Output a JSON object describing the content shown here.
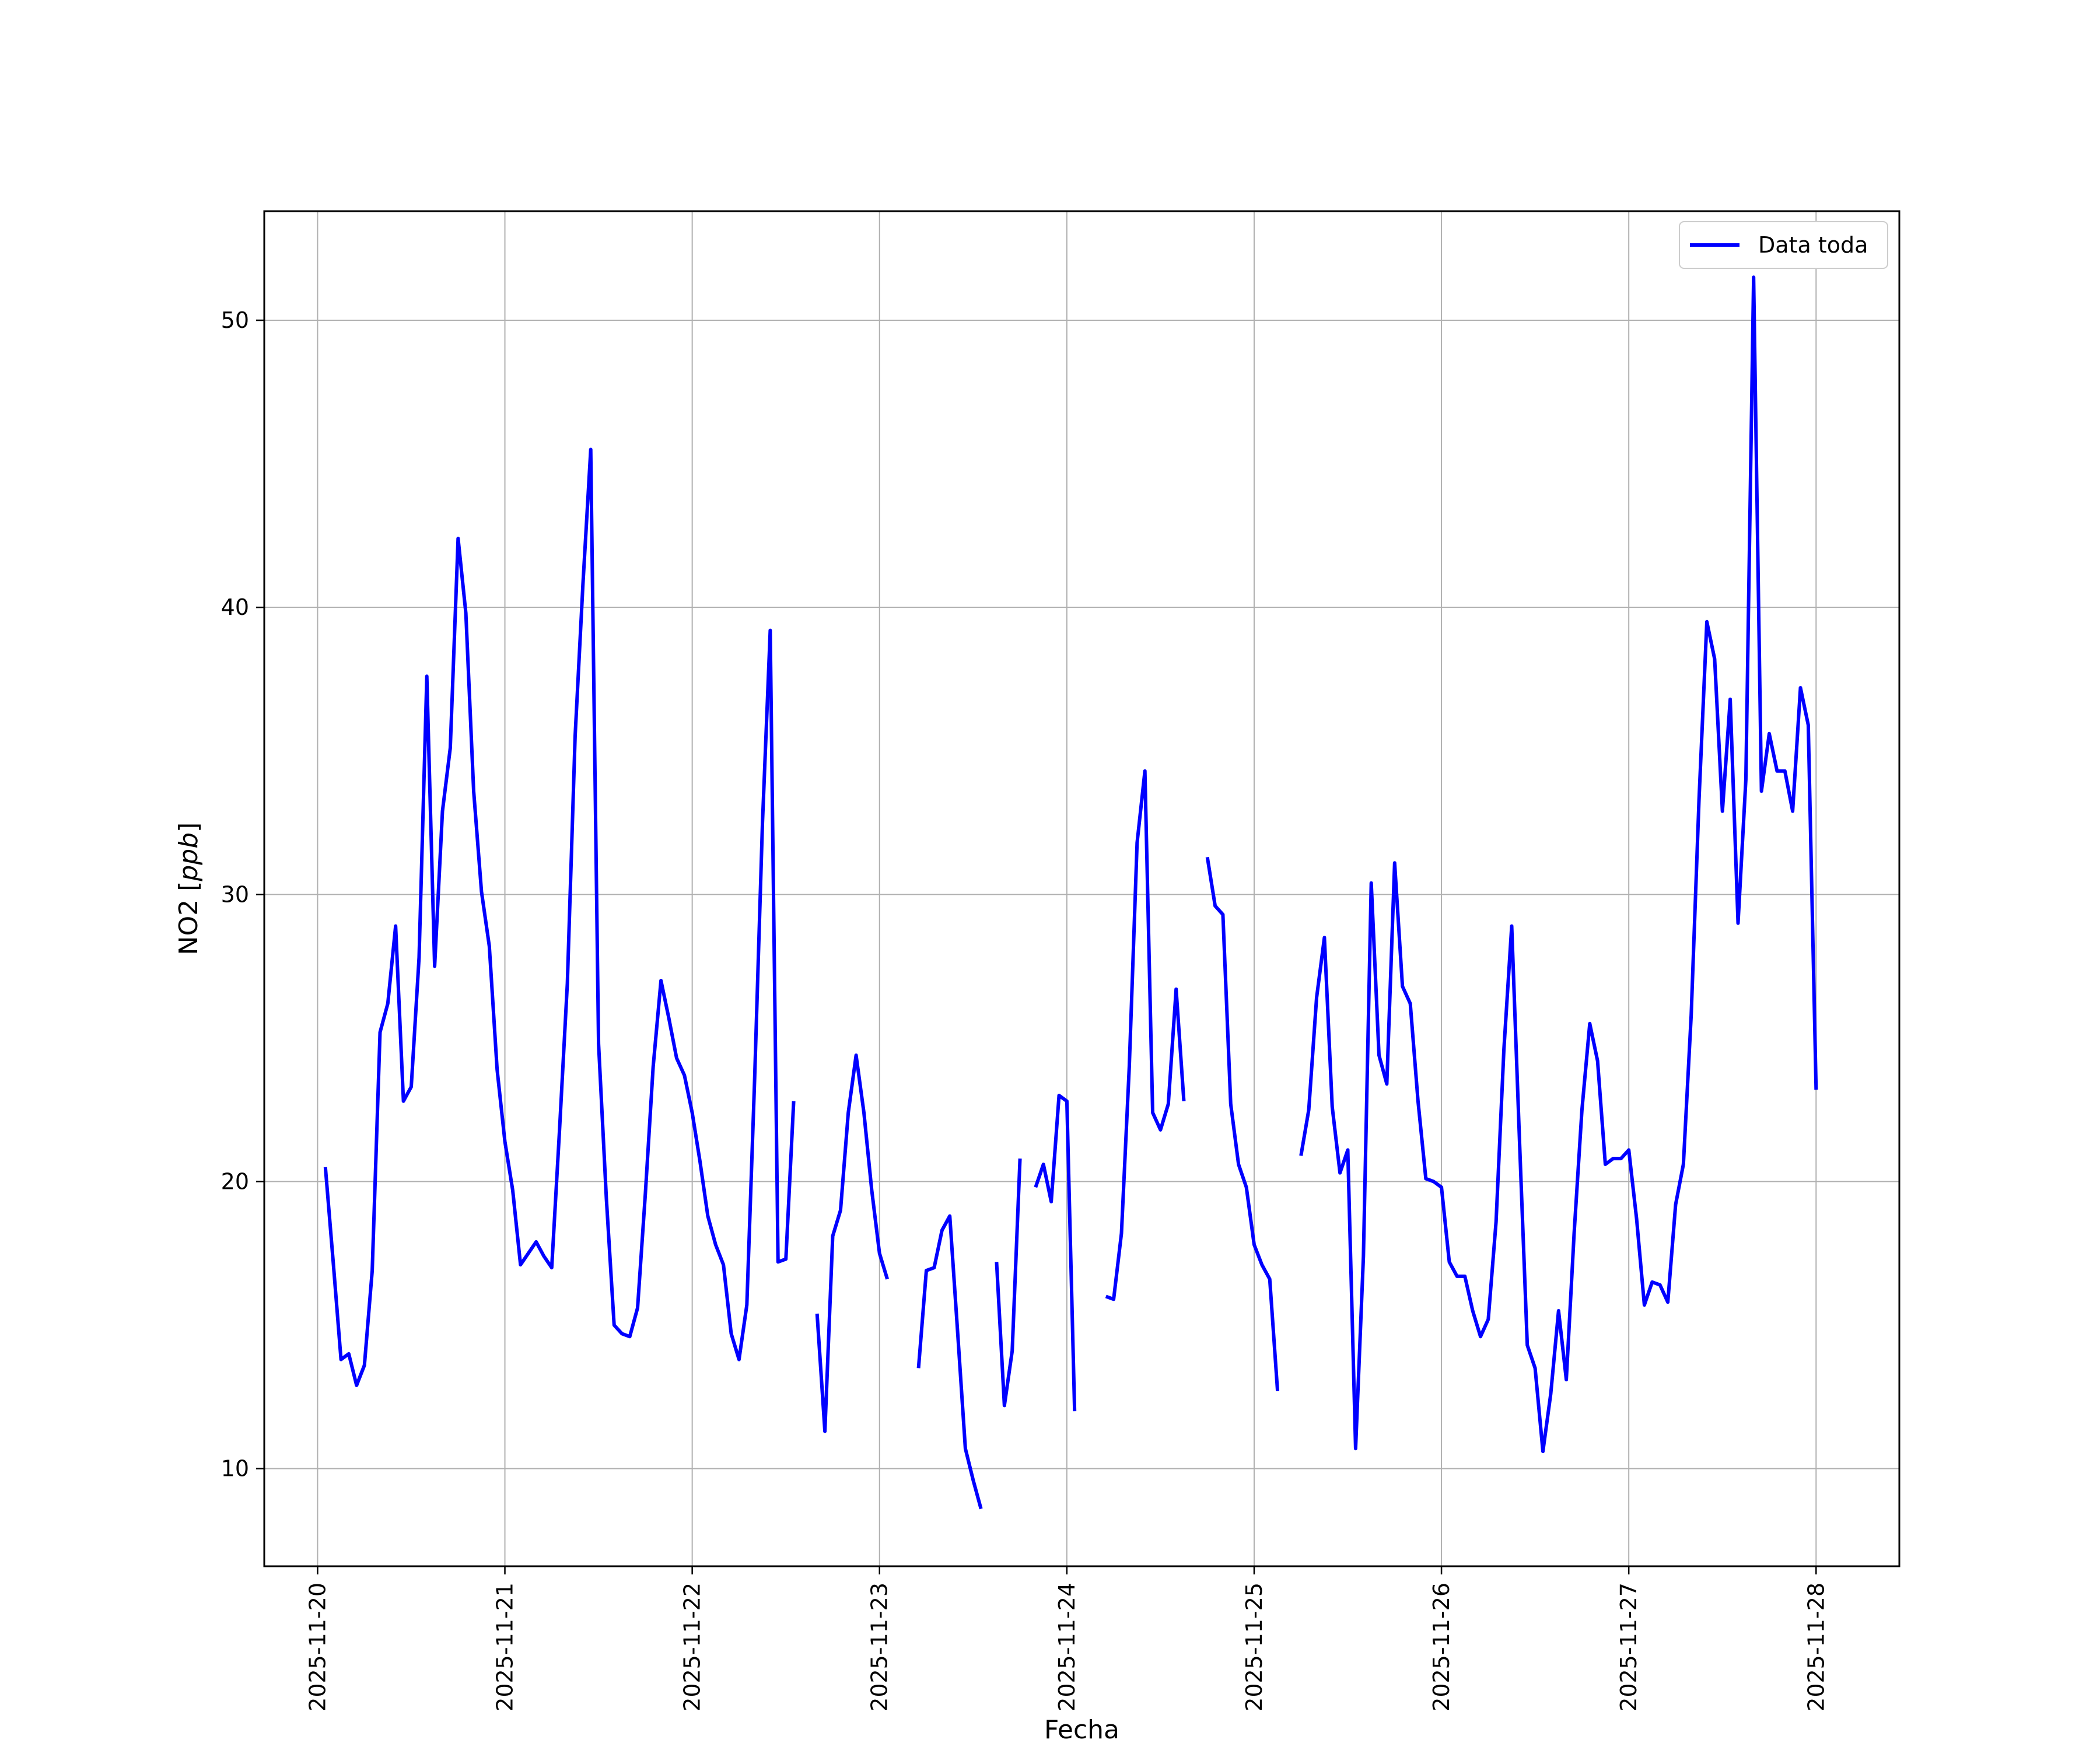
{
  "chart_data": {
    "type": "line",
    "title": "",
    "xlabel": "Fecha",
    "ylabel_prefix": "NO2 [",
    "ylabel_unit": "ppb",
    "ylabel_suffix": "]",
    "x_ticks": [
      "2025-11-20",
      "2025-11-21",
      "2025-11-22",
      "2025-11-23",
      "2025-11-24",
      "2025-11-25",
      "2025-11-26",
      "2025-11-27",
      "2025-11-28"
    ],
    "y_ticks": [
      10,
      20,
      30,
      40,
      50
    ],
    "xlim": [
      "2025-11-19 17:10",
      "2025-11-28 10:40"
    ],
    "ylim": [
      6.6,
      53.8
    ],
    "grid": true,
    "legend": {
      "position": "top-right",
      "entries": [
        "Data toda"
      ]
    },
    "series": [
      {
        "name": "Data toda",
        "color": "#0000ff",
        "segments": [
          [
            [
              "2025-11-20 01:00",
              20.5
            ],
            [
              "2025-11-20 02:00",
              17.2
            ],
            [
              "2025-11-20 03:00",
              13.8
            ],
            [
              "2025-11-20 04:00",
              14.0
            ],
            [
              "2025-11-20 05:00",
              12.9
            ],
            [
              "2025-11-20 06:00",
              13.6
            ],
            [
              "2025-11-20 07:00",
              16.9
            ],
            [
              "2025-11-20 08:00",
              25.2
            ],
            [
              "2025-11-20 09:00",
              26.2
            ],
            [
              "2025-11-20 10:00",
              28.9
            ],
            [
              "2025-11-20 11:00",
              22.8
            ],
            [
              "2025-11-20 12:00",
              23.3
            ],
            [
              "2025-11-20 13:00",
              27.8
            ],
            [
              "2025-11-20 14:00",
              37.6
            ],
            [
              "2025-11-20 15:00",
              27.5
            ],
            [
              "2025-11-20 16:00",
              32.9
            ],
            [
              "2025-11-20 17:00",
              35.1
            ],
            [
              "2025-11-20 18:00",
              42.4
            ],
            [
              "2025-11-20 19:00",
              39.8
            ],
            [
              "2025-11-20 20:00",
              33.6
            ],
            [
              "2025-11-20 21:00",
              30.1
            ],
            [
              "2025-11-20 22:00",
              28.2
            ],
            [
              "2025-11-20 23:00",
              23.9
            ],
            [
              "2025-11-21 00:00",
              21.4
            ],
            [
              "2025-11-21 01:00",
              19.7
            ],
            [
              "2025-11-21 02:00",
              17.1
            ],
            [
              "2025-11-21 03:00",
              17.5
            ],
            [
              "2025-11-21 04:00",
              17.9
            ],
            [
              "2025-11-21 05:00",
              17.4
            ],
            [
              "2025-11-21 06:00",
              17.0
            ],
            [
              "2025-11-21 07:00",
              21.8
            ],
            [
              "2025-11-21 08:00",
              26.9
            ],
            [
              "2025-11-21 09:00",
              35.5
            ],
            [
              "2025-11-21 10:00",
              40.8
            ],
            [
              "2025-11-21 11:00",
              45.5
            ],
            [
              "2025-11-21 12:00",
              24.8
            ],
            [
              "2025-11-21 13:00",
              19.4
            ],
            [
              "2025-11-21 14:00",
              15.0
            ],
            [
              "2025-11-21 15:00",
              14.7
            ],
            [
              "2025-11-21 16:00",
              14.6
            ],
            [
              "2025-11-21 17:00",
              15.6
            ],
            [
              "2025-11-21 18:00",
              19.6
            ],
            [
              "2025-11-21 19:00",
              24.0
            ],
            [
              "2025-11-21 20:00",
              27.0
            ],
            [
              "2025-11-21 21:00",
              25.7
            ],
            [
              "2025-11-21 22:00",
              24.3
            ],
            [
              "2025-11-21 23:00",
              23.7
            ],
            [
              "2025-11-22 00:00",
              22.4
            ],
            [
              "2025-11-22 01:00",
              20.7
            ],
            [
              "2025-11-22 02:00",
              18.8
            ],
            [
              "2025-11-22 03:00",
              17.8
            ],
            [
              "2025-11-22 04:00",
              17.1
            ],
            [
              "2025-11-22 05:00",
              14.7
            ],
            [
              "2025-11-22 06:00",
              13.8
            ],
            [
              "2025-11-22 07:00",
              15.7
            ],
            [
              "2025-11-22 08:00",
              23.6
            ],
            [
              "2025-11-22 09:00",
              32.5
            ],
            [
              "2025-11-22 10:00",
              39.2
            ],
            [
              "2025-11-22 11:00",
              17.2
            ],
            [
              "2025-11-22 12:00",
              17.3
            ],
            [
              "2025-11-22 13:00",
              22.8
            ]
          ],
          [
            [
              "2025-11-22 16:00",
              15.4
            ],
            [
              "2025-11-22 17:00",
              11.3
            ],
            [
              "2025-11-22 18:00",
              18.1
            ],
            [
              "2025-11-22 19:00",
              19.0
            ],
            [
              "2025-11-22 20:00",
              22.4
            ],
            [
              "2025-11-22 21:00",
              24.4
            ],
            [
              "2025-11-22 22:00",
              22.4
            ],
            [
              "2025-11-22 23:00",
              19.7
            ],
            [
              "2025-11-23 00:00",
              17.5
            ],
            [
              "2025-11-23 01:00",
              16.6
            ]
          ],
          [
            [
              "2025-11-23 05:00",
              13.5
            ],
            [
              "2025-11-23 06:00",
              16.9
            ],
            [
              "2025-11-23 07:00",
              17.0
            ],
            [
              "2025-11-23 08:00",
              18.3
            ],
            [
              "2025-11-23 09:00",
              18.8
            ],
            [
              "2025-11-23 10:00",
              14.8
            ],
            [
              "2025-11-23 11:00",
              10.7
            ],
            [
              "2025-11-23 12:00",
              9.6
            ],
            [
              "2025-11-23 13:00",
              8.6
            ]
          ],
          [
            [
              "2025-11-23 15:00",
              17.2
            ],
            [
              "2025-11-23 16:00",
              12.2
            ],
            [
              "2025-11-23 17:00",
              14.1
            ],
            [
              "2025-11-23 18:00",
              20.8
            ]
          ],
          [
            [
              "2025-11-23 20:00",
              19.8
            ],
            [
              "2025-11-23 21:00",
              20.6
            ],
            [
              "2025-11-23 22:00",
              19.3
            ],
            [
              "2025-11-23 23:00",
              23.0
            ],
            [
              "2025-11-24 00:00",
              22.8
            ],
            [
              "2025-11-24 01:00",
              12.0
            ]
          ],
          [
            [
              "2025-11-24 05:00",
              16.0
            ],
            [
              "2025-11-24 06:00",
              15.9
            ],
            [
              "2025-11-24 07:00",
              18.2
            ],
            [
              "2025-11-24 08:00",
              24.0
            ],
            [
              "2025-11-24 09:00",
              31.8
            ],
            [
              "2025-11-24 10:00",
              34.3
            ],
            [
              "2025-11-24 11:00",
              22.4
            ],
            [
              "2025-11-24 12:00",
              21.8
            ],
            [
              "2025-11-24 13:00",
              22.7
            ],
            [
              "2025-11-24 14:00",
              26.7
            ],
            [
              "2025-11-24 15:00",
              22.8
            ]
          ],
          [
            [
              "2025-11-24 18:00",
              31.3
            ],
            [
              "2025-11-24 19:00",
              29.6
            ],
            [
              "2025-11-24 20:00",
              29.3
            ],
            [
              "2025-11-24 21:00",
              22.7
            ],
            [
              "2025-11-24 22:00",
              20.6
            ],
            [
              "2025-11-24 23:00",
              19.8
            ],
            [
              "2025-11-25 00:00",
              17.8
            ],
            [
              "2025-11-25 01:00",
              17.1
            ],
            [
              "2025-11-25 02:00",
              16.6
            ],
            [
              "2025-11-25 03:00",
              12.7
            ]
          ],
          [
            [
              "2025-11-25 06:00",
              20.9
            ],
            [
              "2025-11-25 07:00",
              22.5
            ],
            [
              "2025-11-25 08:00",
              26.4
            ],
            [
              "2025-11-25 09:00",
              28.5
            ],
            [
              "2025-11-25 10:00",
              22.6
            ],
            [
              "2025-11-25 11:00",
              20.3
            ],
            [
              "2025-11-25 12:00",
              21.1
            ],
            [
              "2025-11-25 13:00",
              10.7
            ],
            [
              "2025-11-25 14:00",
              17.4
            ],
            [
              "2025-11-25 15:00",
              30.4
            ],
            [
              "2025-11-25 16:00",
              24.4
            ],
            [
              "2025-11-25 17:00",
              23.4
            ],
            [
              "2025-11-25 18:00",
              31.1
            ],
            [
              "2025-11-25 19:00",
              26.8
            ],
            [
              "2025-11-25 20:00",
              26.2
            ],
            [
              "2025-11-25 21:00",
              22.8
            ],
            [
              "2025-11-25 22:00",
              20.1
            ],
            [
              "2025-11-25 23:00",
              20.0
            ],
            [
              "2025-11-26 00:00",
              19.8
            ],
            [
              "2025-11-26 01:00",
              17.2
            ],
            [
              "2025-11-26 02:00",
              16.7
            ],
            [
              "2025-11-26 03:00",
              16.7
            ],
            [
              "2025-11-26 04:00",
              15.5
            ],
            [
              "2025-11-26 05:00",
              14.6
            ],
            [
              "2025-11-26 06:00",
              15.2
            ],
            [
              "2025-11-26 07:00",
              18.6
            ],
            [
              "2025-11-26 08:00",
              24.6
            ],
            [
              "2025-11-26 09:00",
              28.9
            ],
            [
              "2025-11-26 10:00",
              21.4
            ],
            [
              "2025-11-26 11:00",
              14.3
            ],
            [
              "2025-11-26 12:00",
              13.5
            ],
            [
              "2025-11-26 13:00",
              10.6
            ],
            [
              "2025-11-26 14:00",
              12.6
            ],
            [
              "2025-11-26 15:00",
              15.5
            ],
            [
              "2025-11-26 16:00",
              13.1
            ],
            [
              "2025-11-26 17:00",
              18.2
            ],
            [
              "2025-11-26 18:00",
              22.5
            ],
            [
              "2025-11-26 19:00",
              25.5
            ],
            [
              "2025-11-26 20:00",
              24.2
            ],
            [
              "2025-11-26 21:00",
              20.6
            ],
            [
              "2025-11-26 22:00",
              20.8
            ],
            [
              "2025-11-26 23:00",
              20.8
            ],
            [
              "2025-11-27 00:00",
              21.1
            ],
            [
              "2025-11-27 01:00",
              18.7
            ],
            [
              "2025-11-27 02:00",
              15.7
            ],
            [
              "2025-11-27 03:00",
              16.5
            ],
            [
              "2025-11-27 04:00",
              16.4
            ],
            [
              "2025-11-27 05:00",
              15.8
            ],
            [
              "2025-11-27 06:00",
              19.2
            ],
            [
              "2025-11-27 07:00",
              20.6
            ],
            [
              "2025-11-27 08:00",
              25.8
            ],
            [
              "2025-11-27 09:00",
              33.3
            ],
            [
              "2025-11-27 10:00",
              39.5
            ],
            [
              "2025-11-27 11:00",
              38.2
            ],
            [
              "2025-11-27 12:00",
              32.9
            ],
            [
              "2025-11-27 13:00",
              36.8
            ],
            [
              "2025-11-27 14:00",
              29.0
            ],
            [
              "2025-11-27 15:00",
              34.0
            ],
            [
              "2025-11-27 16:00",
              51.5
            ],
            [
              "2025-11-27 17:00",
              33.6
            ],
            [
              "2025-11-27 18:00",
              35.6
            ],
            [
              "2025-11-27 19:00",
              34.3
            ],
            [
              "2025-11-27 20:00",
              34.3
            ],
            [
              "2025-11-27 21:00",
              32.9
            ],
            [
              "2025-11-27 22:00",
              37.2
            ],
            [
              "2025-11-27 23:00",
              35.9
            ],
            [
              "2025-11-28 00:00",
              23.2
            ]
          ]
        ]
      }
    ]
  }
}
